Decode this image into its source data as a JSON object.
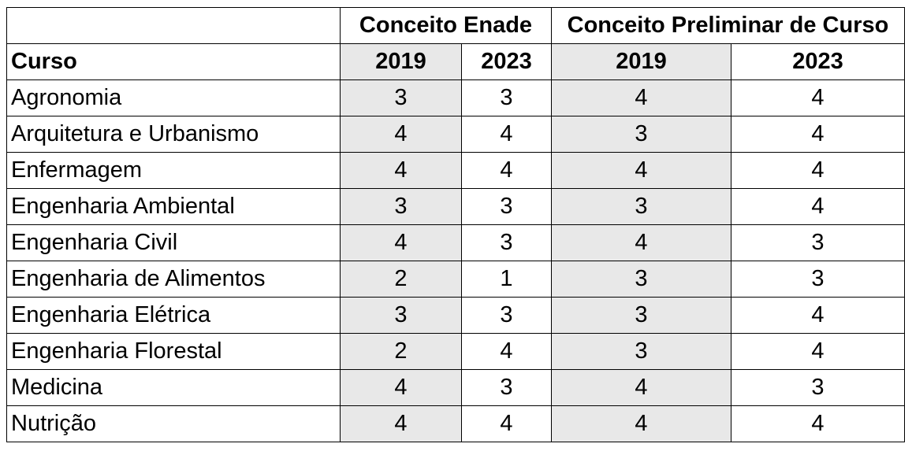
{
  "chart_data": {
    "type": "table",
    "header_groups": [
      {
        "label": "",
        "span": 1
      },
      {
        "label": "Conceito Enade",
        "span": 2
      },
      {
        "label": "Conceito Preliminar de Curso",
        "span": 2
      }
    ],
    "columns": [
      "Curso",
      "2019",
      "2023",
      "2019",
      "2023"
    ],
    "rows": [
      {
        "curso": "Agronomia",
        "values": [
          "3",
          "3",
          "4",
          "4"
        ]
      },
      {
        "curso": "Arquitetura e Urbanismo",
        "values": [
          "4",
          "4",
          "3",
          "4"
        ]
      },
      {
        "curso": "Enfermagem",
        "values": [
          "4",
          "4",
          "4",
          "4"
        ]
      },
      {
        "curso": "Engenharia Ambiental",
        "values": [
          "3",
          "3",
          "3",
          "4"
        ]
      },
      {
        "curso": "Engenharia Civil",
        "values": [
          "4",
          "3",
          "4",
          "3"
        ]
      },
      {
        "curso": "Engenharia de Alimentos",
        "values": [
          "2",
          "1",
          "3",
          "3"
        ]
      },
      {
        "curso": "Engenharia Elétrica",
        "values": [
          "3",
          "3",
          "3",
          "4"
        ]
      },
      {
        "curso": "Engenharia Florestal",
        "values": [
          "2",
          "4",
          "3",
          "4"
        ]
      },
      {
        "curso": "Medicina",
        "values": [
          "4",
          "3",
          "4",
          "3"
        ]
      },
      {
        "curso": "Nutrição",
        "values": [
          "4",
          "4",
          "4",
          "4"
        ]
      }
    ],
    "shaded_color": "#e8e8e8",
    "border_color": "#000000"
  }
}
